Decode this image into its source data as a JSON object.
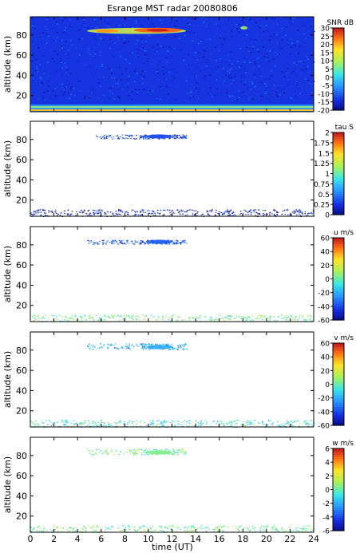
{
  "chart_data": {
    "type": "heatmap",
    "title": "Esrange MST radar 20080806",
    "xlabel": "time (UT)",
    "xlim": [
      0,
      24
    ],
    "x_ticks": [
      "0",
      "2",
      "4",
      "6",
      "8",
      "10",
      "12",
      "14",
      "16",
      "18",
      "20",
      "22",
      "24"
    ],
    "panels": [
      {
        "id": "snr",
        "ylabel": "altitude (km)",
        "ylim": [
          4,
          98
        ],
        "y_ticks": [
          "20",
          "40",
          "60",
          "80"
        ],
        "colorbar": {
          "label": "SNR dB",
          "range": [
            -20,
            30
          ],
          "ticks": [
            "30",
            "25",
            "20",
            "15",
            "10",
            "5",
            "0",
            "-5",
            "-10",
            "-15",
            "-20"
          ]
        },
        "features": [
          {
            "name": "background noise",
            "time": [
              0,
              24
            ],
            "altitude": [
              5,
              98
            ],
            "value": -13
          },
          {
            "name": "lower echo layer",
            "time": [
              0,
              24
            ],
            "altitude": [
              4,
              11
            ],
            "value": 5
          },
          {
            "name": "PMSE",
            "time": [
              4.8,
              13.2
            ],
            "altitude": [
              81,
              87
            ],
            "value": 13
          },
          {
            "name": "PMSE patch",
            "time": [
              17.8,
              18.4
            ],
            "altitude": [
              86,
              88
            ],
            "value": 10
          }
        ]
      },
      {
        "id": "tau",
        "ylabel": "altitude (km)",
        "ylim": [
          4,
          98
        ],
        "y_ticks": [
          "20",
          "40",
          "60",
          "80"
        ],
        "colorbar": {
          "label": "tau S",
          "range": [
            0,
            2
          ],
          "ticks": [
            "2",
            "1.75",
            "1.5",
            "1.25",
            "1",
            "0.75",
            "0.5",
            "0.25",
            "0"
          ]
        },
        "features": [
          {
            "name": "PMSE",
            "time": [
              5.5,
              13.2
            ],
            "altitude": [
              81,
              85
            ],
            "value": 0.35
          },
          {
            "name": "lower echo layer",
            "time": [
              0,
              24
            ],
            "altitude": [
              4,
              11
            ],
            "value": 0.2
          }
        ]
      },
      {
        "id": "u",
        "ylabel": "altitude (km)",
        "ylim": [
          4,
          98
        ],
        "y_ticks": [
          "20",
          "40",
          "60",
          "80"
        ],
        "colorbar": {
          "label": "u m/s",
          "range": [
            -60,
            60
          ],
          "ticks": [
            "60",
            "40",
            "20",
            "0",
            "-20",
            "-40",
            "-60"
          ]
        },
        "features": [
          {
            "name": "PMSE",
            "time": [
              4.8,
              13.2
            ],
            "altitude": [
              81,
              85
            ],
            "value": -35
          },
          {
            "name": "lower echo layer",
            "time": [
              0,
              24
            ],
            "altitude": [
              4,
              11
            ],
            "value": 5
          }
        ]
      },
      {
        "id": "v",
        "ylabel": "altitude (km)",
        "ylim": [
          4,
          98
        ],
        "y_ticks": [
          "20",
          "40",
          "60",
          "80"
        ],
        "colorbar": {
          "label": "v m/s",
          "range": [
            -60,
            60
          ],
          "ticks": [
            "60",
            "40",
            "20",
            "0",
            "-20",
            "-40",
            "-60"
          ]
        },
        "features": [
          {
            "name": "PMSE",
            "time": [
              4.8,
              13.2
            ],
            "altitude": [
              81,
              87
            ],
            "value": -20
          },
          {
            "name": "lower echo layer",
            "time": [
              0,
              24
            ],
            "altitude": [
              4,
              11
            ],
            "value": -5
          }
        ]
      },
      {
        "id": "w",
        "ylabel": "altitude (km)",
        "ylim": [
          4,
          98
        ],
        "y_ticks": [
          "20",
          "40",
          "60",
          "80"
        ],
        "colorbar": {
          "label": "w m/s",
          "range": [
            -6,
            6
          ],
          "ticks": [
            "6",
            "4",
            "2",
            "0",
            "-2",
            "-4",
            "-6"
          ]
        },
        "features": [
          {
            "name": "PMSE",
            "time": [
              4.8,
              13.2
            ],
            "altitude": [
              81,
              87
            ],
            "value": 0.5
          },
          {
            "name": "lower echo layer",
            "time": [
              0,
              24
            ],
            "altitude": [
              4,
              11
            ],
            "value": 0.5
          }
        ]
      }
    ]
  }
}
